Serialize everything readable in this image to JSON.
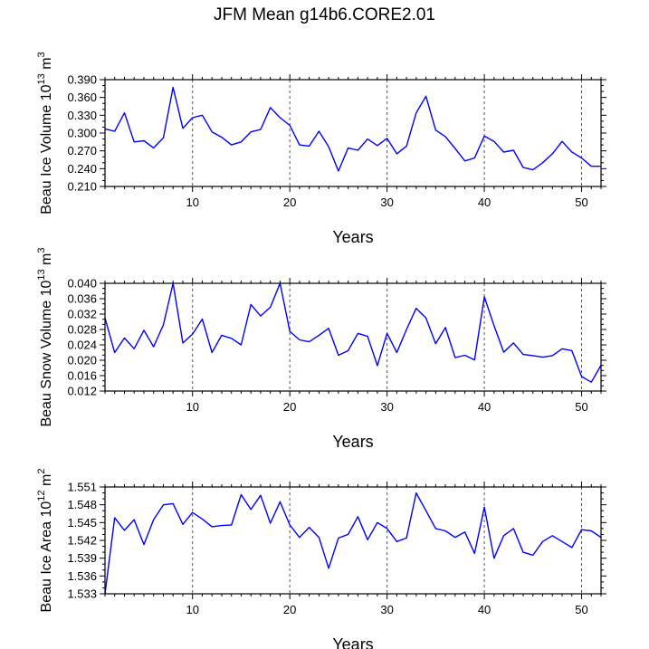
{
  "figure_title": "JFM Mean g14b6.CORE2.01",
  "chart_data": [
    {
      "type": "line",
      "ylabel": "Beau Ice Volume 10^13 m^3",
      "ylabel_text": "Beau Ice Volume 10",
      "ylabel_exp": "13",
      "ylabel_unit": "m",
      "ylabel_unit_exp": "3",
      "xlabel": "Years",
      "xlim": [
        1,
        52
      ],
      "ylim": [
        0.21,
        0.39
      ],
      "yticks": [
        "0.210",
        "0.240",
        "0.270",
        "0.300",
        "0.330",
        "0.360",
        "0.390"
      ],
      "xticks": [
        10,
        20,
        30,
        40,
        50
      ],
      "gridlines_x": [
        10,
        20,
        30,
        40,
        50
      ],
      "line_color": "#0000ff",
      "x": [
        1,
        2,
        3,
        4,
        5,
        6,
        7,
        8,
        9,
        10,
        11,
        12,
        13,
        14,
        15,
        16,
        17,
        18,
        19,
        20,
        21,
        22,
        23,
        24,
        25,
        26,
        27,
        28,
        29,
        30,
        31,
        32,
        33,
        34,
        35,
        36,
        37,
        38,
        39,
        40,
        41,
        42,
        43,
        44,
        45,
        46,
        47,
        48,
        49,
        50,
        51,
        52
      ],
      "values": [
        0.307,
        0.303,
        0.334,
        0.285,
        0.287,
        0.275,
        0.292,
        0.377,
        0.308,
        0.326,
        0.33,
        0.302,
        0.293,
        0.28,
        0.285,
        0.302,
        0.306,
        0.343,
        0.326,
        0.313,
        0.28,
        0.278,
        0.303,
        0.277,
        0.236,
        0.275,
        0.271,
        0.29,
        0.279,
        0.291,
        0.265,
        0.278,
        0.334,
        0.362,
        0.305,
        0.294,
        0.274,
        0.253,
        0.258,
        0.295,
        0.286,
        0.268,
        0.271,
        0.242,
        0.238,
        0.25,
        0.265,
        0.286,
        0.268,
        0.258,
        0.244,
        0.244
      ]
    },
    {
      "type": "line",
      "ylabel": "Beau Snow Volume 10^13 m^3",
      "ylabel_text": "Beau Snow Volume 10",
      "ylabel_exp": "13",
      "ylabel_unit": "m",
      "ylabel_unit_exp": "3",
      "xlabel": "Years",
      "xlim": [
        1,
        52
      ],
      "ylim": [
        0.012,
        0.04
      ],
      "yticks": [
        "0.012",
        "0.016",
        "0.020",
        "0.024",
        "0.028",
        "0.032",
        "0.036",
        "0.040"
      ],
      "xticks": [
        10,
        20,
        30,
        40,
        50
      ],
      "gridlines_x": [
        10,
        20,
        30,
        40,
        50
      ],
      "line_color": "#0000ff",
      "x": [
        1,
        2,
        3,
        4,
        5,
        6,
        7,
        8,
        9,
        10,
        11,
        12,
        13,
        14,
        15,
        16,
        17,
        18,
        19,
        20,
        21,
        22,
        23,
        24,
        25,
        26,
        27,
        28,
        29,
        30,
        31,
        32,
        33,
        34,
        35,
        36,
        37,
        38,
        39,
        40,
        41,
        42,
        43,
        44,
        45,
        46,
        47,
        48,
        49,
        50,
        51,
        52
      ],
      "values": [
        0.031,
        0.022,
        0.0258,
        0.023,
        0.0278,
        0.0235,
        0.0292,
        0.04,
        0.0245,
        0.0268,
        0.0307,
        0.022,
        0.0265,
        0.0257,
        0.024,
        0.0345,
        0.0315,
        0.0338,
        0.04,
        0.0275,
        0.0253,
        0.0248,
        0.0265,
        0.0283,
        0.0213,
        0.0225,
        0.027,
        0.0262,
        0.0186,
        0.027,
        0.022,
        0.028,
        0.0335,
        0.031,
        0.0243,
        0.0285,
        0.0207,
        0.0213,
        0.0201,
        0.0365,
        0.029,
        0.0221,
        0.0245,
        0.0215,
        0.0212,
        0.0208,
        0.0212,
        0.023,
        0.0225,
        0.0158,
        0.0143,
        0.0187
      ]
    },
    {
      "type": "line",
      "ylabel": "Beau Ice Area 10^12 m^2",
      "ylabel_text": "Beau Ice Area 10",
      "ylabel_exp": "12",
      "ylabel_unit": "m",
      "ylabel_unit_exp": "2",
      "xlabel": "Years",
      "xlim": [
        1,
        52
      ],
      "ylim": [
        1.533,
        1.551
      ],
      "yticks": [
        "1.533",
        "1.536",
        "1.539",
        "1.542",
        "1.545",
        "1.548",
        "1.551"
      ],
      "xticks": [
        10,
        20,
        30,
        40,
        50
      ],
      "gridlines_x": [
        10,
        20,
        30,
        40,
        50
      ],
      "line_color": "#0000ff",
      "x": [
        1,
        2,
        3,
        4,
        5,
        6,
        7,
        8,
        9,
        10,
        11,
        12,
        13,
        14,
        15,
        16,
        17,
        18,
        19,
        20,
        21,
        22,
        23,
        24,
        25,
        26,
        27,
        28,
        29,
        30,
        31,
        32,
        33,
        34,
        35,
        36,
        37,
        38,
        39,
        40,
        41,
        42,
        43,
        44,
        45,
        46,
        47,
        48,
        49,
        50,
        51,
        52
      ],
      "values": [
        1.533,
        1.5458,
        1.5437,
        1.5455,
        1.5413,
        1.5455,
        1.548,
        1.5482,
        1.5447,
        1.5467,
        1.5456,
        1.5443,
        1.5445,
        1.5446,
        1.5497,
        1.5472,
        1.5496,
        1.5449,
        1.5485,
        1.5446,
        1.5425,
        1.5442,
        1.5425,
        1.5373,
        1.5424,
        1.543,
        1.546,
        1.5421,
        1.545,
        1.544,
        1.5418,
        1.5424,
        1.55,
        1.547,
        1.544,
        1.5436,
        1.5425,
        1.5434,
        1.5398,
        1.5476,
        1.539,
        1.5428,
        1.544,
        1.54,
        1.5395,
        1.5418,
        1.5428,
        1.5418,
        1.5408,
        1.5438,
        1.5436,
        1.5425
      ]
    }
  ]
}
